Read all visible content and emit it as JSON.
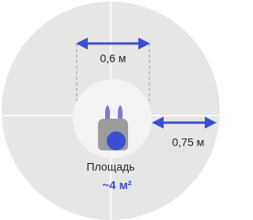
{
  "labels": {
    "width": "0,6 м",
    "side": "0,75 м",
    "area_caption": "Площадь",
    "area_value": "~4 м²"
  }
}
